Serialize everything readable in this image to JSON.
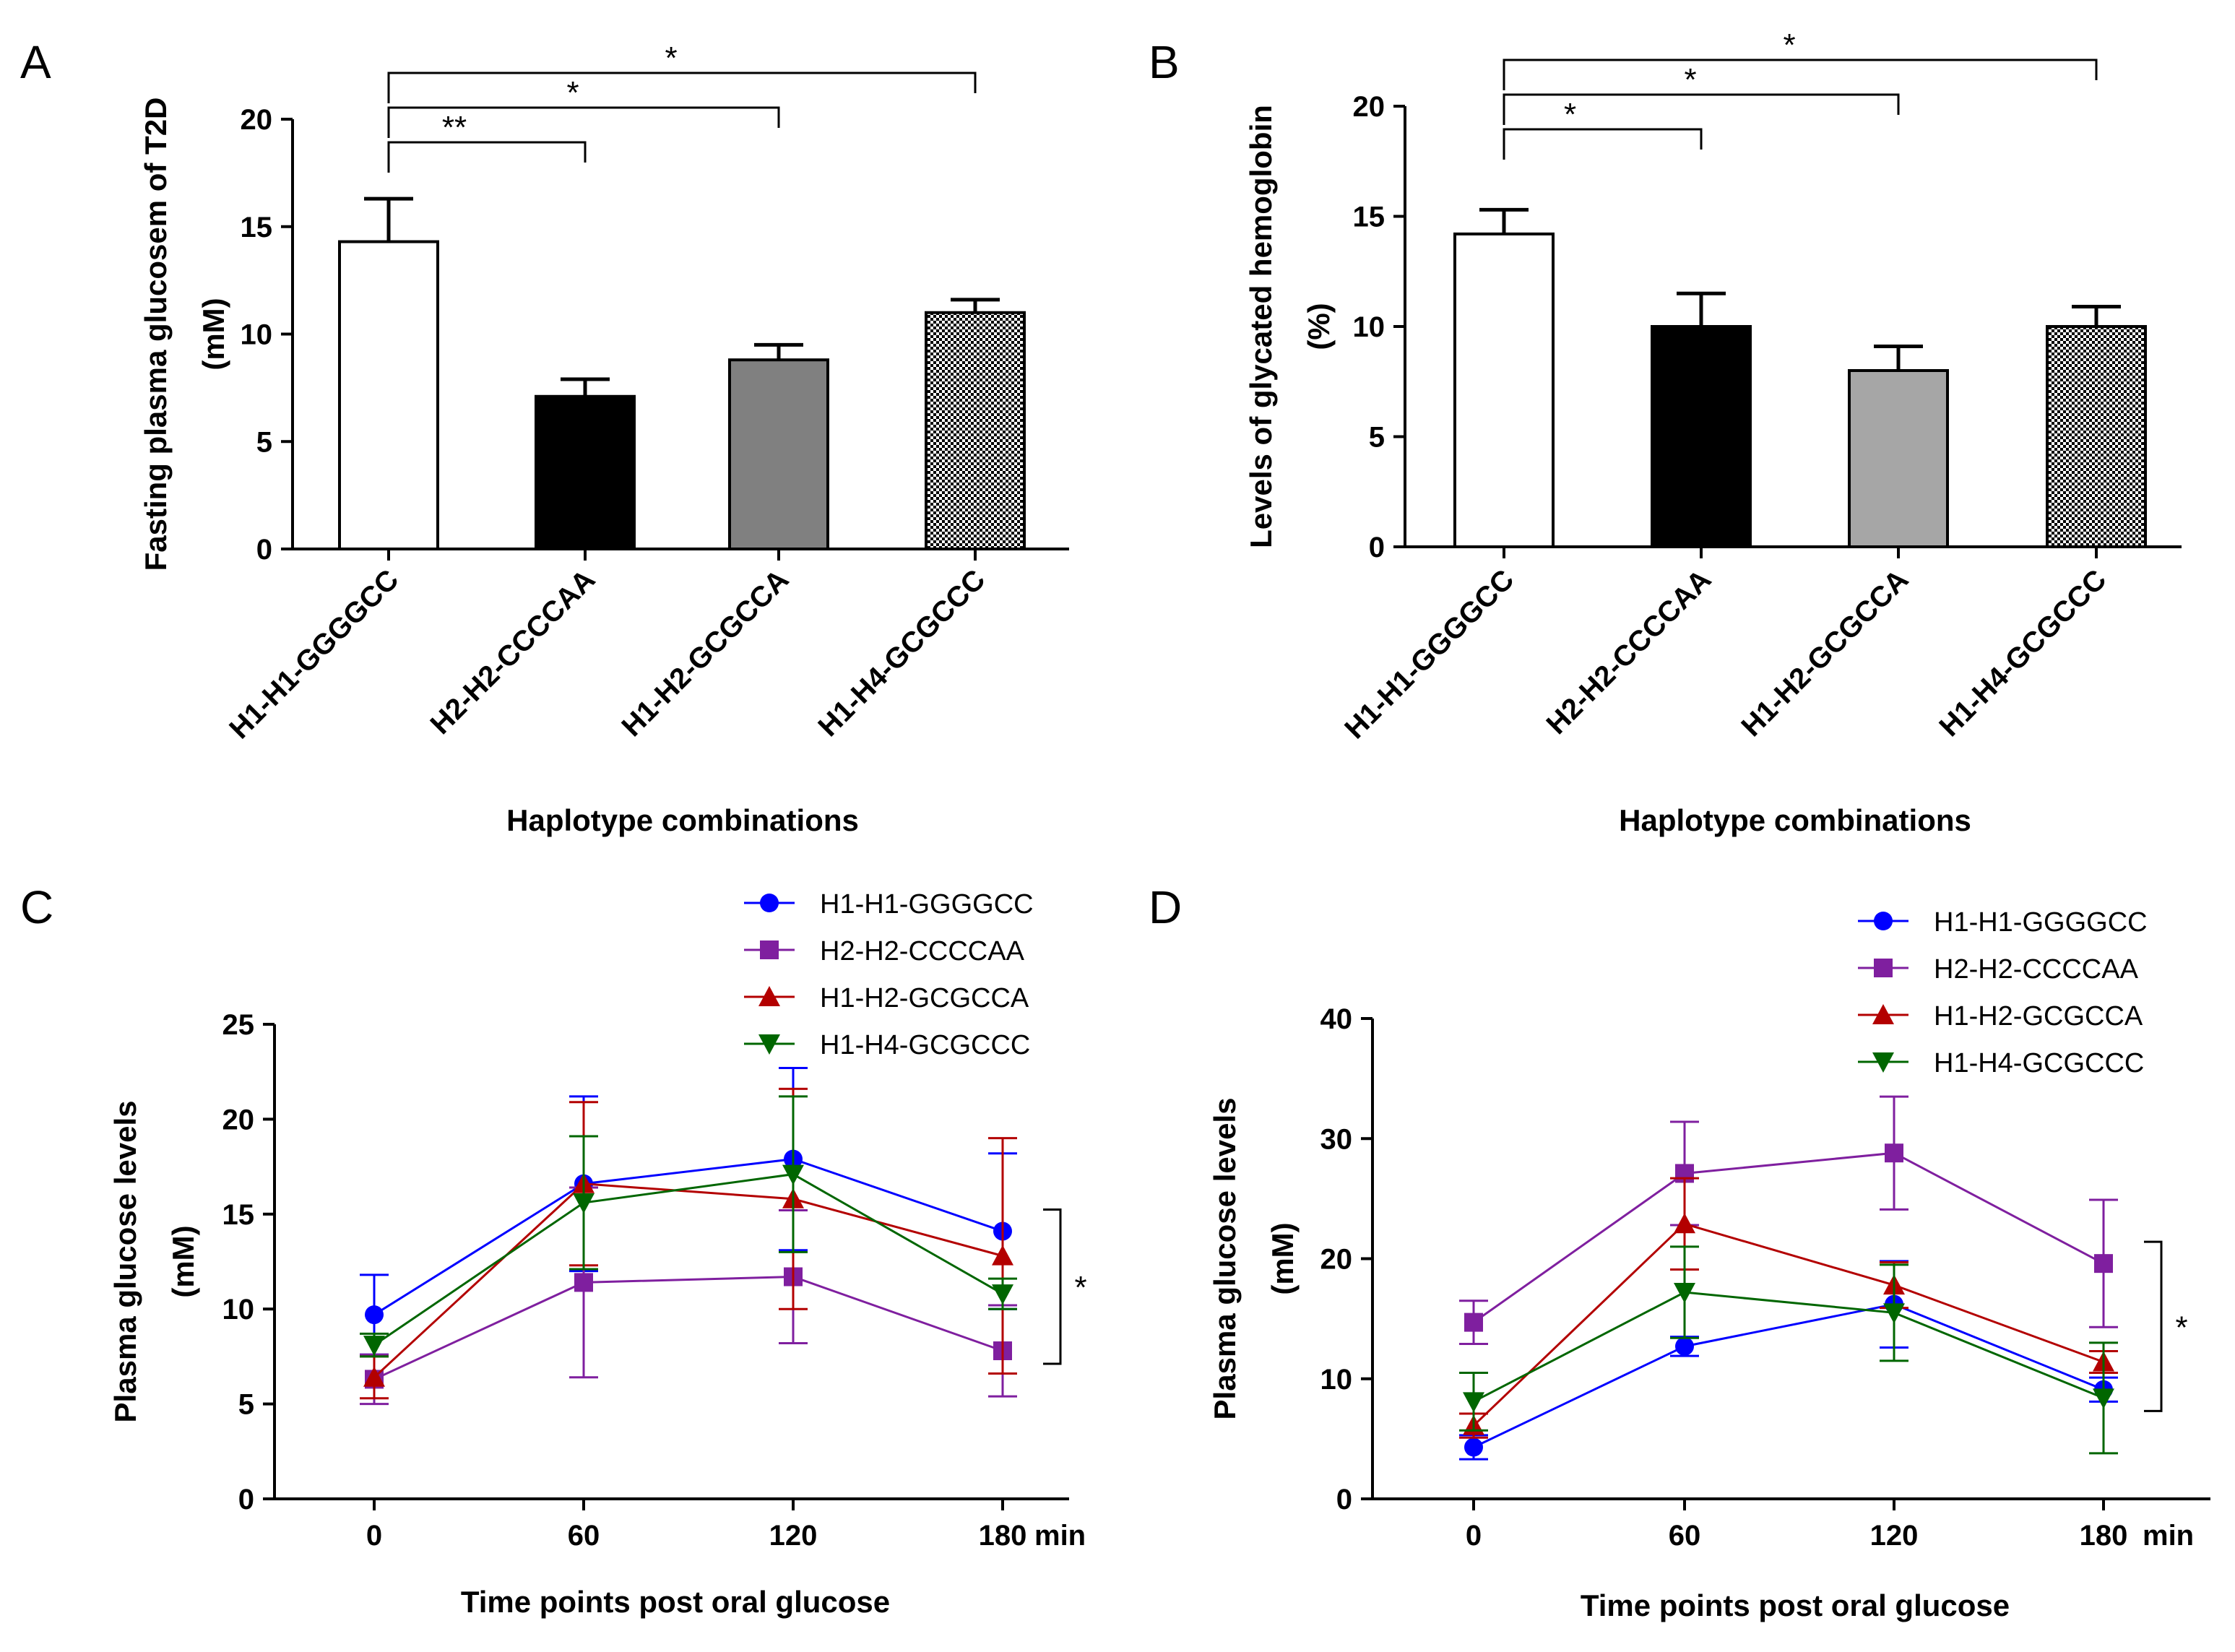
{
  "chart_data": [
    {
      "panel": "A",
      "type": "bar",
      "categories": [
        "H1-H1-GGGGCC",
        "H2-H2-CCCCAA",
        "H1-H2-GCGCCA",
        "H1-H4-GCGCCC"
      ],
      "values": [
        14.3,
        7.1,
        8.8,
        11.0
      ],
      "errors": [
        2.0,
        0.8,
        0.7,
        0.6
      ],
      "fills": [
        "#ffffff",
        "#000000",
        "#808080",
        "checker"
      ],
      "ylabel": "Fasting plasma glucosem of T2D",
      "ylabel2": "(mM)",
      "xlabel": "Haplotype combinations",
      "ylim": [
        0,
        20
      ],
      "yticks": [
        0,
        5,
        10,
        15,
        20
      ],
      "significance": [
        {
          "from": 0,
          "to": 1,
          "label": "**",
          "level": 1
        },
        {
          "from": 0,
          "to": 2,
          "label": "*",
          "level": 2
        },
        {
          "from": 0,
          "to": 3,
          "label": "*",
          "level": 3
        }
      ]
    },
    {
      "panel": "B",
      "type": "bar",
      "categories": [
        "H1-H1-GGGGCC",
        "H2-H2-CCCCAA",
        "H1-H2-GCGCCA",
        "H1-H4-GCGCCC"
      ],
      "values": [
        14.2,
        10.0,
        8.0,
        10.0
      ],
      "errors": [
        1.1,
        1.5,
        1.1,
        0.9
      ],
      "fills": [
        "#ffffff",
        "#000000",
        "#a6a6a6",
        "checker"
      ],
      "ylabel": "Levels of glycated hemoglobin",
      "ylabel2": "(%)",
      "xlabel": "Haplotype combinations",
      "ylim": [
        0,
        20
      ],
      "yticks": [
        0,
        5,
        10,
        15,
        20
      ],
      "significance": [
        {
          "from": 0,
          "to": 1,
          "label": "*",
          "level": 1
        },
        {
          "from": 0,
          "to": 2,
          "label": "*",
          "level": 2
        },
        {
          "from": 0,
          "to": 3,
          "label": "*",
          "level": 3
        }
      ]
    },
    {
      "panel": "C",
      "type": "line",
      "x": [
        0,
        60,
        120,
        180
      ],
      "xticks": [
        "0",
        "60",
        "120",
        "180"
      ],
      "x_unit": "min",
      "ylabel": "Plasma glucose levels",
      "ylabel2": "(mM)",
      "xlabel": "Time points post oral glucose",
      "ylim": [
        0,
        25
      ],
      "yticks": [
        0,
        5,
        10,
        15,
        20,
        25
      ],
      "series": [
        {
          "name": "H1-H1-GGGGCC",
          "color": "#0000ff",
          "marker": "circle",
          "values": [
            9.7,
            16.6,
            17.9,
            14.1
          ],
          "errors": [
            2.1,
            4.6,
            4.8,
            4.1
          ]
        },
        {
          "name": "H2-H2-CCCCAA",
          "color": "#7f1f9f",
          "marker": "square",
          "values": [
            6.3,
            11.4,
            11.7,
            7.8
          ],
          "errors": [
            1.3,
            5.0,
            3.5,
            2.4
          ]
        },
        {
          "name": "H1-H2-GCGCCA",
          "color": "#b30000",
          "marker": "triangle-up",
          "values": [
            6.4,
            16.6,
            15.8,
            12.8
          ],
          "errors": [
            1.1,
            4.3,
            5.8,
            6.2
          ]
        },
        {
          "name": "H1-H4-GCGCCC",
          "color": "#006600",
          "marker": "triangle-down",
          "values": [
            8.1,
            15.6,
            17.1,
            10.8
          ],
          "errors": [
            0.6,
            3.5,
            4.1,
            0.8
          ]
        }
      ],
      "bracket_label": "*"
    },
    {
      "panel": "D",
      "type": "line",
      "x": [
        0,
        60,
        120,
        180
      ],
      "xticks": [
        "0",
        "60",
        "120",
        "180"
      ],
      "x_unit": "min",
      "ylabel": "Plasma glucose levels",
      "ylabel2": "(mM)",
      "xlabel": "Time points post oral glucose",
      "ylim": [
        0,
        40
      ],
      "yticks": [
        0,
        10,
        20,
        30,
        40
      ],
      "series": [
        {
          "name": "H1-H1-GGGGCC",
          "color": "#0000ff",
          "marker": "circle",
          "values": [
            4.3,
            12.7,
            16.2,
            9.1
          ],
          "errors": [
            1.0,
            0.8,
            3.6,
            1.0
          ]
        },
        {
          "name": "H2-H2-CCCCAA",
          "color": "#7f1f9f",
          "marker": "square",
          "values": [
            14.7,
            27.1,
            28.8,
            19.6
          ],
          "errors": [
            1.8,
            4.3,
            4.7,
            5.3
          ]
        },
        {
          "name": "H1-H2-GCGCCA",
          "color": "#b30000",
          "marker": "triangle-up",
          "values": [
            6.1,
            22.9,
            17.8,
            11.4
          ],
          "errors": [
            1.0,
            3.8,
            1.9,
            0.9
          ]
        },
        {
          "name": "H1-H4-GCGCCC",
          "color": "#006600",
          "marker": "triangle-down",
          "values": [
            8.1,
            17.2,
            15.5,
            8.4
          ],
          "errors": [
            2.4,
            3.8,
            4.0,
            4.6
          ]
        }
      ],
      "bracket_label": "*"
    }
  ]
}
